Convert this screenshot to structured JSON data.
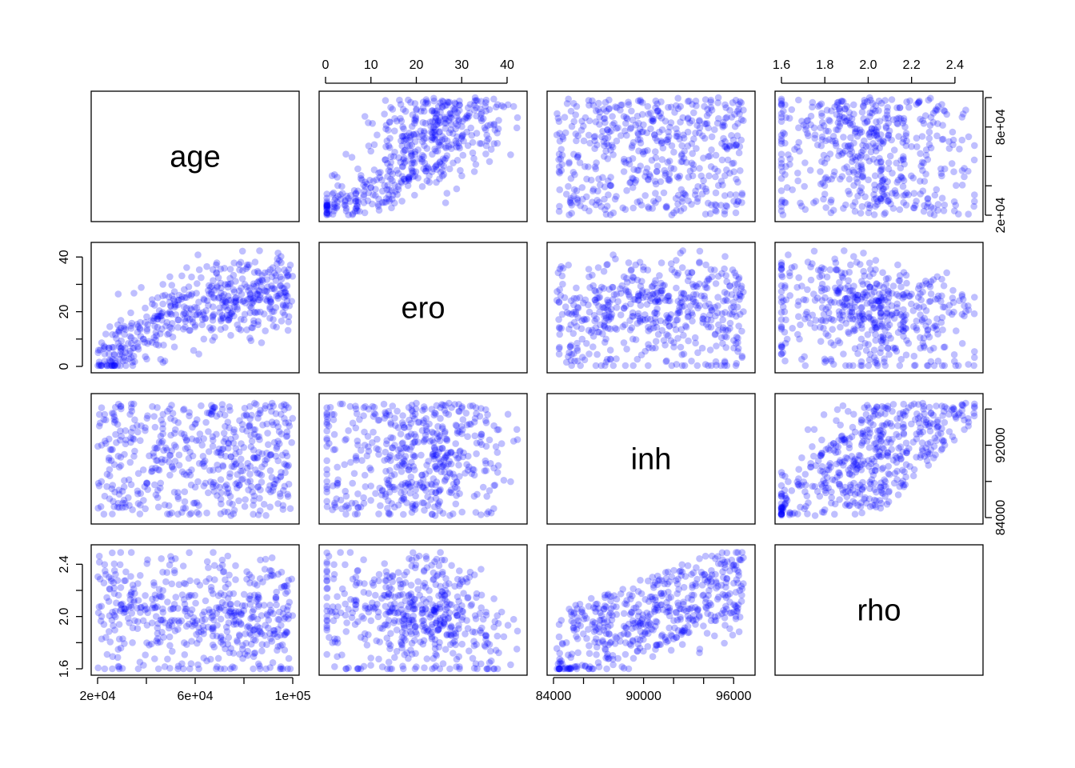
{
  "chart_data": {
    "type": "scatter",
    "kind": "scatterplot-matrix",
    "variables": [
      "age",
      "ero",
      "inh",
      "rho"
    ],
    "point_color": "#0000ff",
    "point_alpha": 0.25,
    "n_points": 500,
    "ranges": {
      "age": [
        20000,
        100000
      ],
      "ero": [
        0,
        43
      ],
      "inh": [
        84000,
        97000
      ],
      "rho": [
        1.6,
        2.5
      ]
    },
    "axes": {
      "age": {
        "ticks": [
          20000,
          40000,
          60000,
          80000,
          100000
        ],
        "labels": [
          "2e+04",
          "",
          "6e+04",
          "",
          "1e+05"
        ],
        "side": "bottom/right"
      },
      "ero": {
        "ticks": [
          0,
          10,
          20,
          30,
          40
        ],
        "labels": [
          "0",
          "10",
          "20",
          "30",
          "40"
        ],
        "side": "top/left"
      },
      "inh": {
        "ticks": [
          84000,
          86000,
          88000,
          90000,
          92000,
          94000,
          96000
        ],
        "labels": [
          "84000",
          "",
          "",
          "90000",
          "",
          "",
          "96000"
        ],
        "side": "bottom/right"
      },
      "rho": {
        "ticks": [
          1.6,
          1.7,
          1.8,
          1.9,
          2.0,
          2.1,
          2.2,
          2.3,
          2.4
        ],
        "labels": [
          "1.6",
          "",
          "1.8",
          "",
          "2.0",
          "",
          "2.2",
          "",
          "2.4"
        ],
        "side": "top/left"
      },
      "age_right": {
        "ticks": [
          20000,
          40000,
          60000,
          80000,
          100000
        ],
        "labels": [
          "2e+04",
          "",
          "",
          "8e+04",
          ""
        ]
      },
      "inh_right": {
        "ticks": [
          84000,
          88000,
          92000,
          96000
        ],
        "labels": [
          "84000",
          "",
          "92000",
          ""
        ]
      },
      "ero_left": {
        "ticks": [
          0,
          10,
          20,
          30,
          40
        ],
        "labels": [
          "0",
          "",
          "20",
          "",
          "40"
        ]
      },
      "rho_left": {
        "ticks": [
          1.6,
          1.8,
          2.0,
          2.2,
          2.4
        ],
        "labels": [
          "1.6",
          "",
          "2.0",
          "",
          "2.4"
        ]
      },
      "rho_top": {
        "ticks": [
          1.6,
          1.8,
          2.0,
          2.2,
          2.4
        ],
        "labels": [
          "1.6",
          "1.8",
          "2.0",
          "2.2",
          "2.4"
        ]
      },
      "ero_top": {
        "ticks": [
          0,
          10,
          20,
          30,
          40
        ],
        "labels": [
          "0",
          "10",
          "20",
          "30",
          "40"
        ]
      },
      "age_bottom": {
        "ticks": [
          20000,
          40000,
          60000,
          80000,
          100000
        ],
        "labels": [
          "2e+04",
          "",
          "6e+04",
          "",
          "1e+05"
        ]
      },
      "inh_bottom": {
        "ticks": [
          84000,
          86000,
          88000,
          90000,
          92000,
          94000,
          96000
        ],
        "labels": [
          "84000",
          "",
          "",
          "90000",
          "",
          "",
          "96000"
        ]
      }
    },
    "relationships": {
      "age_ero": "increasing, saturating near 20-40 for age above ~55000",
      "ero_rho": "decreasing, rho falls to ~1.6 as ero approaches 40",
      "inh_rho": "increasing, wedge-shaped",
      "age_inh": "no correlation",
      "age_rho": "no correlation",
      "ero_inh": "weak"
    },
    "xlabel": "",
    "ylabel": "",
    "title": ""
  }
}
